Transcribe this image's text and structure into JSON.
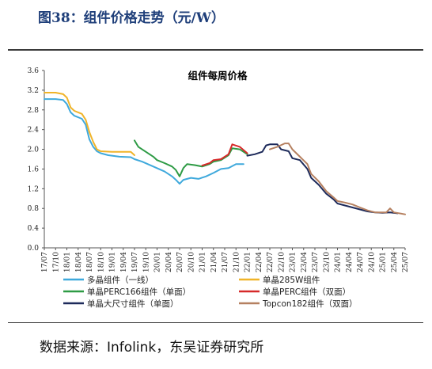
{
  "figure": {
    "title": "图38：组件价格走势（元/W）",
    "source": "数据来源：Infolink，东吴证券研究所"
  },
  "chart_data": {
    "type": "line",
    "title": "组件每周价格",
    "xlabel": "",
    "ylabel": "",
    "ylim": [
      0,
      3.6
    ],
    "yticks": [
      "0.0",
      "0.4",
      "0.8",
      "1.2",
      "1.6",
      "2.0",
      "2.4",
      "2.8",
      "3.2",
      "3.6"
    ],
    "xlim": [
      "2017-07",
      "2025-07"
    ],
    "xticks": [
      "17/07",
      "17/10",
      "18/01",
      "18/04",
      "18/07",
      "18/10",
      "19/01",
      "19/04",
      "19/07",
      "19/10",
      "20/01",
      "20/04",
      "20/07",
      "20/10",
      "21/01",
      "21/04",
      "21/07",
      "21/10",
      "22/01",
      "22/04",
      "22/07",
      "22/10",
      "23/01",
      "23/04",
      "23/07",
      "23/10",
      "24/01",
      "24/04",
      "24/07",
      "24/10",
      "25/01",
      "25/04",
      "25/07"
    ],
    "grid": false,
    "legend": "bottom",
    "series": [
      {
        "name": "多晶组件（一线）",
        "color": "#3fa9dc",
        "points": [
          [
            "2017-07",
            3.02
          ],
          [
            "2017-10",
            3.02
          ],
          [
            "2017-12",
            3.0
          ],
          [
            "2018-01",
            2.92
          ],
          [
            "2018-02",
            2.75
          ],
          [
            "2018-03",
            2.68
          ],
          [
            "2018-05",
            2.62
          ],
          [
            "2018-06",
            2.5
          ],
          [
            "2018-07",
            2.2
          ],
          [
            "2018-08",
            2.05
          ],
          [
            "2018-09",
            1.96
          ],
          [
            "2018-10",
            1.92
          ],
          [
            "2018-12",
            1.88
          ],
          [
            "2019-03",
            1.85
          ],
          [
            "2019-06",
            1.84
          ],
          [
            "2019-07",
            1.8
          ],
          [
            "2019-09",
            1.75
          ],
          [
            "2019-12",
            1.65
          ],
          [
            "2020-03",
            1.55
          ],
          [
            "2020-05",
            1.45
          ],
          [
            "2020-06",
            1.38
          ],
          [
            "2020-07",
            1.3
          ],
          [
            "2020-08",
            1.38
          ],
          [
            "2020-10",
            1.42
          ],
          [
            "2020-12",
            1.4
          ],
          [
            "2021-02",
            1.45
          ],
          [
            "2021-04",
            1.52
          ],
          [
            "2021-06",
            1.6
          ],
          [
            "2021-08",
            1.62
          ],
          [
            "2021-10",
            1.7
          ],
          [
            "2021-12",
            1.7
          ]
        ]
      },
      {
        "name": "单晶285W组件",
        "color": "#f0b429",
        "points": [
          [
            "2017-07",
            3.15
          ],
          [
            "2017-10",
            3.15
          ],
          [
            "2017-12",
            3.12
          ],
          [
            "2018-01",
            3.05
          ],
          [
            "2018-02",
            2.85
          ],
          [
            "2018-03",
            2.78
          ],
          [
            "2018-05",
            2.72
          ],
          [
            "2018-06",
            2.6
          ],
          [
            "2018-07",
            2.35
          ],
          [
            "2018-08",
            2.15
          ],
          [
            "2018-09",
            2.0
          ],
          [
            "2018-10",
            1.96
          ],
          [
            "2019-01",
            1.95
          ],
          [
            "2019-04",
            1.95
          ],
          [
            "2019-06",
            1.95
          ],
          [
            "2019-07",
            1.88
          ]
        ]
      },
      {
        "name": "单晶PERC166组件（单面）",
        "color": "#2e9b45",
        "points": [
          [
            "2019-07",
            2.18
          ],
          [
            "2019-08",
            2.05
          ],
          [
            "2019-10",
            1.95
          ],
          [
            "2019-12",
            1.85
          ],
          [
            "2020-01",
            1.78
          ],
          [
            "2020-03",
            1.72
          ],
          [
            "2020-05",
            1.65
          ],
          [
            "2020-06",
            1.58
          ],
          [
            "2020-07",
            1.45
          ],
          [
            "2020-08",
            1.62
          ],
          [
            "2020-09",
            1.7
          ],
          [
            "2020-11",
            1.68
          ],
          [
            "2021-01",
            1.65
          ],
          [
            "2021-03",
            1.7
          ],
          [
            "2021-04",
            1.75
          ],
          [
            "2021-06",
            1.78
          ],
          [
            "2021-08",
            1.88
          ],
          [
            "2021-09",
            2.02
          ],
          [
            "2021-11",
            2.0
          ],
          [
            "2022-01",
            1.9
          ]
        ]
      },
      {
        "name": "单晶PERC组件（双面）",
        "color": "#d62a2a",
        "points": [
          [
            "2021-01",
            1.67
          ],
          [
            "2021-03",
            1.72
          ],
          [
            "2021-04",
            1.78
          ],
          [
            "2021-06",
            1.8
          ],
          [
            "2021-08",
            1.9
          ],
          [
            "2021-09",
            2.1
          ],
          [
            "2021-11",
            2.05
          ],
          [
            "2022-01",
            1.92
          ]
        ]
      },
      {
        "name": "单晶大尺寸组件（单面）",
        "color": "#1d2a5a",
        "points": [
          [
            "2022-01",
            1.87
          ],
          [
            "2022-03",
            1.9
          ],
          [
            "2022-05",
            1.95
          ],
          [
            "2022-06",
            2.08
          ],
          [
            "2022-07",
            2.1
          ],
          [
            "2022-09",
            2.1
          ],
          [
            "2022-10",
            2.0
          ],
          [
            "2022-12",
            1.96
          ],
          [
            "2023-01",
            1.82
          ],
          [
            "2023-03",
            1.78
          ],
          [
            "2023-05",
            1.6
          ],
          [
            "2023-06",
            1.42
          ],
          [
            "2023-08",
            1.28
          ],
          [
            "2023-10",
            1.1
          ],
          [
            "2023-12",
            0.98
          ],
          [
            "2024-01",
            0.9
          ],
          [
            "2024-03",
            0.86
          ],
          [
            "2024-05",
            0.82
          ],
          [
            "2024-07",
            0.78
          ],
          [
            "2024-09",
            0.74
          ],
          [
            "2024-11",
            0.72
          ],
          [
            "2025-01",
            0.71
          ],
          [
            "2025-03",
            0.72
          ],
          [
            "2025-05",
            0.7
          ]
        ]
      },
      {
        "name": "Topcon182组件（双面）",
        "color": "#b58060",
        "points": [
          [
            "2022-07",
            2.0
          ],
          [
            "2022-09",
            2.05
          ],
          [
            "2022-11",
            2.12
          ],
          [
            "2022-12",
            2.12
          ],
          [
            "2023-01",
            2.0
          ],
          [
            "2023-03",
            1.85
          ],
          [
            "2023-05",
            1.7
          ],
          [
            "2023-06",
            1.5
          ],
          [
            "2023-08",
            1.35
          ],
          [
            "2023-10",
            1.15
          ],
          [
            "2023-12",
            1.02
          ],
          [
            "2024-01",
            0.95
          ],
          [
            "2024-03",
            0.92
          ],
          [
            "2024-05",
            0.88
          ],
          [
            "2024-07",
            0.82
          ],
          [
            "2024-09",
            0.76
          ],
          [
            "2024-11",
            0.72
          ],
          [
            "2025-01",
            0.72
          ],
          [
            "2025-02",
            0.72
          ],
          [
            "2025-03",
            0.8
          ],
          [
            "2025-04",
            0.72
          ],
          [
            "2025-07",
            0.68
          ]
        ]
      }
    ]
  }
}
